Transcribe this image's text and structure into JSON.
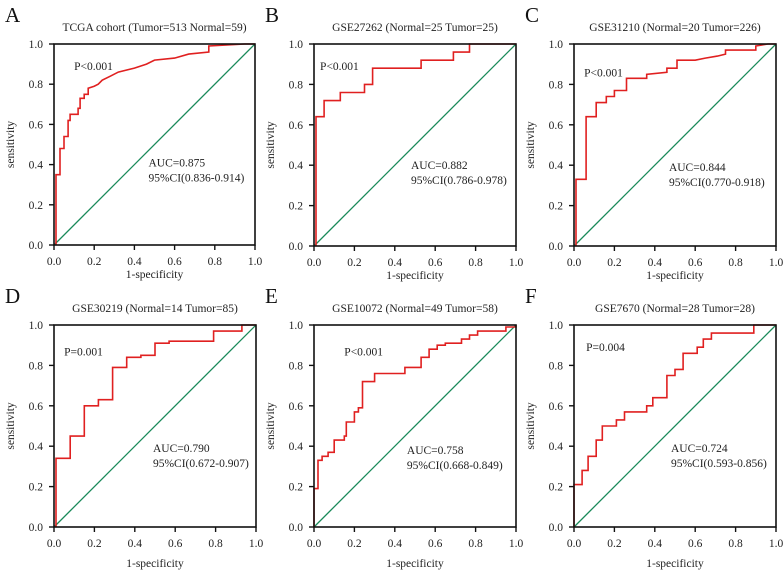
{
  "chart_data": [
    {
      "type": "line",
      "letter": "A",
      "title": "TCGA cohort (Tumor=513 Normal=59)",
      "xlabel": "1-specificity",
      "ylabel": "sensitivity",
      "xlim": [
        0,
        1
      ],
      "ylim": [
        0,
        1
      ],
      "xticks": [
        "0.0",
        "0.2",
        "0.4",
        "0.6",
        "0.8",
        "1.0"
      ],
      "yticks": [
        "0.0",
        "0.2",
        "0.4",
        "0.6",
        "0.8",
        "1.0"
      ],
      "p_text": "P<0.001",
      "auc_text": "AUC=0.875",
      "ci_text": "95%CI(0.836-0.914)",
      "roc": {
        "x": [
          0.01,
          0.01,
          0.03,
          0.03,
          0.05,
          0.05,
          0.07,
          0.07,
          0.08,
          0.08,
          0.12,
          0.12,
          0.13,
          0.13,
          0.15,
          0.15,
          0.17,
          0.17,
          0.2,
          0.22,
          0.24,
          0.28,
          0.32,
          0.4,
          0.46,
          0.5,
          0.6,
          0.67,
          0.77,
          0.77,
          0.95,
          1
        ],
        "y": [
          0,
          0.35,
          0.35,
          0.48,
          0.48,
          0.54,
          0.54,
          0.62,
          0.62,
          0.65,
          0.65,
          0.68,
          0.68,
          0.73,
          0.73,
          0.75,
          0.75,
          0.78,
          0.79,
          0.8,
          0.82,
          0.84,
          0.86,
          0.88,
          0.9,
          0.92,
          0.93,
          0.95,
          0.96,
          0.99,
          1,
          1
        ]
      }
    },
    {
      "type": "line",
      "letter": "B",
      "title": "GSE27262 (Normal=25 Tumor=25)",
      "xlabel": "1-specificity",
      "ylabel": "sensitivity",
      "xlim": [
        0,
        1
      ],
      "ylim": [
        0,
        1
      ],
      "xticks": [
        "0.0",
        "0.2",
        "0.4",
        "0.6",
        "0.8",
        "1.0"
      ],
      "yticks": [
        "0.0",
        "0.2",
        "0.4",
        "0.6",
        "0.8",
        "1.0"
      ],
      "p_text": "P<0.001",
      "auc_text": "AUC=0.882",
      "ci_text": "95%CI(0.786-0.978)",
      "roc": {
        "x": [
          0.01,
          0.01,
          0.05,
          0.05,
          0.13,
          0.13,
          0.25,
          0.25,
          0.29,
          0.29,
          0.53,
          0.53,
          0.69,
          0.69,
          0.77,
          0.77,
          1
        ],
        "y": [
          0,
          0.64,
          0.64,
          0.72,
          0.72,
          0.76,
          0.76,
          0.8,
          0.8,
          0.88,
          0.88,
          0.92,
          0.92,
          0.96,
          0.96,
          1,
          1
        ]
      }
    },
    {
      "type": "line",
      "letter": "C",
      "title": "GSE31210 (Normal=20 Tumor=226)",
      "xlabel": "1-specificity",
      "ylabel": "sensitivity",
      "xlim": [
        0,
        1
      ],
      "ylim": [
        0,
        1
      ],
      "xticks": [
        "0.0",
        "0.2",
        "0.4",
        "0.6",
        "0.8",
        "1.0"
      ],
      "yticks": [
        "0.0",
        "0.2",
        "0.4",
        "0.6",
        "0.8",
        "1.0"
      ],
      "p_text": "P<0.001",
      "auc_text": "AUC=0.844",
      "ci_text": "95%CI(0.770-0.918)",
      "roc": {
        "x": [
          0.01,
          0.01,
          0.06,
          0.06,
          0.11,
          0.11,
          0.16,
          0.16,
          0.2,
          0.2,
          0.26,
          0.26,
          0.36,
          0.36,
          0.46,
          0.46,
          0.51,
          0.51,
          0.6,
          0.65,
          0.71,
          0.75,
          0.75,
          0.9,
          0.9,
          0.96,
          1
        ],
        "y": [
          0,
          0.33,
          0.33,
          0.64,
          0.64,
          0.71,
          0.71,
          0.74,
          0.74,
          0.77,
          0.77,
          0.83,
          0.83,
          0.85,
          0.86,
          0.88,
          0.88,
          0.92,
          0.92,
          0.93,
          0.94,
          0.95,
          0.97,
          0.97,
          0.99,
          1,
          1
        ]
      }
    },
    {
      "type": "line",
      "letter": "D",
      "title": "GSE30219 (Normal=14 Tumor=85)",
      "xlabel": "1-specificity",
      "ylabel": "sensitivity",
      "xlim": [
        0,
        1
      ],
      "ylim": [
        0,
        1
      ],
      "xticks": [
        "0.0",
        "0.2",
        "0.4",
        "0.6",
        "0.8",
        "1.0"
      ],
      "yticks": [
        "0.0",
        "0.2",
        "0.4",
        "0.6",
        "0.8",
        "1.0"
      ],
      "p_text": "P=0.001",
      "auc_text": "AUC=0.790",
      "ci_text": "95%CI(0.672-0.907)",
      "roc": {
        "x": [
          0.01,
          0.01,
          0.08,
          0.08,
          0.15,
          0.15,
          0.22,
          0.22,
          0.29,
          0.29,
          0.36,
          0.36,
          0.43,
          0.43,
          0.5,
          0.5,
          0.57,
          0.57,
          0.79,
          0.79,
          0.93,
          0.93,
          1
        ],
        "y": [
          0,
          0.34,
          0.34,
          0.45,
          0.45,
          0.6,
          0.6,
          0.63,
          0.63,
          0.79,
          0.79,
          0.84,
          0.84,
          0.85,
          0.85,
          0.91,
          0.91,
          0.92,
          0.92,
          0.97,
          0.97,
          1,
          1
        ]
      }
    },
    {
      "type": "line",
      "letter": "E",
      "title": "GSE10072 (Normal=49 Tumor=58)",
      "xlabel": "1-specificity",
      "ylabel": "sensitivity",
      "xlim": [
        0,
        1
      ],
      "ylim": [
        0,
        1
      ],
      "xticks": [
        "0.0",
        "0.2",
        "0.4",
        "0.6",
        "0.8",
        "1.0"
      ],
      "yticks": [
        "0.0",
        "0.2",
        "0.4",
        "0.6",
        "0.8",
        "1.0"
      ],
      "p_text": "P<0.001",
      "auc_text": "AUC=0.758",
      "ci_text": "95%CI(0.668-0.849)",
      "roc": {
        "x": [
          0,
          0,
          0.02,
          0.02,
          0.04,
          0.04,
          0.07,
          0.07,
          0.1,
          0.1,
          0.15,
          0.15,
          0.16,
          0.16,
          0.2,
          0.2,
          0.22,
          0.22,
          0.24,
          0.24,
          0.3,
          0.3,
          0.45,
          0.45,
          0.53,
          0.53,
          0.57,
          0.57,
          0.61,
          0.61,
          0.65,
          0.65,
          0.73,
          0.73,
          0.77,
          0.77,
          0.81,
          0.81,
          0.95,
          0.95,
          1,
          1
        ],
        "y": [
          0,
          0.19,
          0.19,
          0.33,
          0.33,
          0.35,
          0.35,
          0.37,
          0.37,
          0.43,
          0.43,
          0.45,
          0.45,
          0.52,
          0.52,
          0.57,
          0.57,
          0.59,
          0.59,
          0.72,
          0.72,
          0.76,
          0.76,
          0.79,
          0.79,
          0.84,
          0.84,
          0.88,
          0.88,
          0.9,
          0.9,
          0.91,
          0.91,
          0.93,
          0.93,
          0.95,
          0.95,
          0.97,
          0.97,
          0.99,
          0.99,
          1
        ]
      }
    },
    {
      "type": "line",
      "letter": "F",
      "title": "GSE7670 (Normal=28 Tumor=28)",
      "xlabel": "1-specificity",
      "ylabel": "sensitivity",
      "xlim": [
        0,
        1
      ],
      "ylim": [
        0,
        1
      ],
      "xticks": [
        "0.0",
        "0.2",
        "0.4",
        "0.6",
        "0.8",
        "1.0"
      ],
      "yticks": [
        "0.0",
        "0.2",
        "0.4",
        "0.6",
        "0.8",
        "1.0"
      ],
      "p_text": "P=0.004",
      "auc_text": "AUC=0.724",
      "ci_text": "95%CI(0.593-0.856)",
      "roc": {
        "x": [
          0,
          0,
          0.04,
          0.04,
          0.07,
          0.07,
          0.11,
          0.11,
          0.14,
          0.14,
          0.21,
          0.21,
          0.25,
          0.25,
          0.36,
          0.36,
          0.39,
          0.39,
          0.46,
          0.46,
          0.5,
          0.5,
          0.54,
          0.54,
          0.61,
          0.61,
          0.64,
          0.64,
          0.68,
          0.68,
          0.89,
          0.89,
          1
        ],
        "y": [
          0,
          0.21,
          0.21,
          0.28,
          0.28,
          0.35,
          0.35,
          0.43,
          0.43,
          0.5,
          0.5,
          0.53,
          0.53,
          0.57,
          0.57,
          0.6,
          0.6,
          0.64,
          0.64,
          0.75,
          0.75,
          0.78,
          0.78,
          0.86,
          0.86,
          0.89,
          0.89,
          0.93,
          0.93,
          0.96,
          0.96,
          1,
          1
        ]
      }
    }
  ],
  "colors": {
    "roc": "#e02020",
    "reference": "#1a8a5a",
    "axis": "#111111"
  }
}
